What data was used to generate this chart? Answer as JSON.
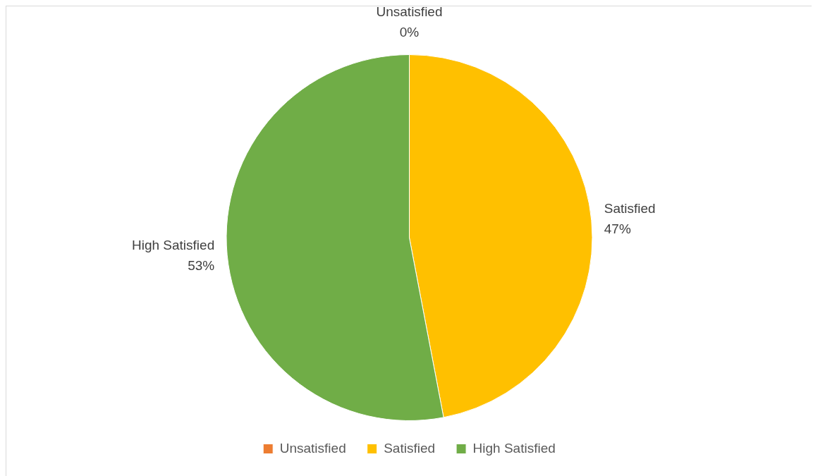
{
  "chart_data": {
    "type": "pie",
    "categories": [
      "Unsatisfied",
      "Satisfied",
      "High Satisfied"
    ],
    "values": [
      0,
      47,
      53
    ],
    "colors": [
      "#ed7d31",
      "#ffc000",
      "#70ad47"
    ],
    "value_labels": [
      "0%",
      "47%",
      "53%"
    ],
    "legend": "bottom"
  }
}
